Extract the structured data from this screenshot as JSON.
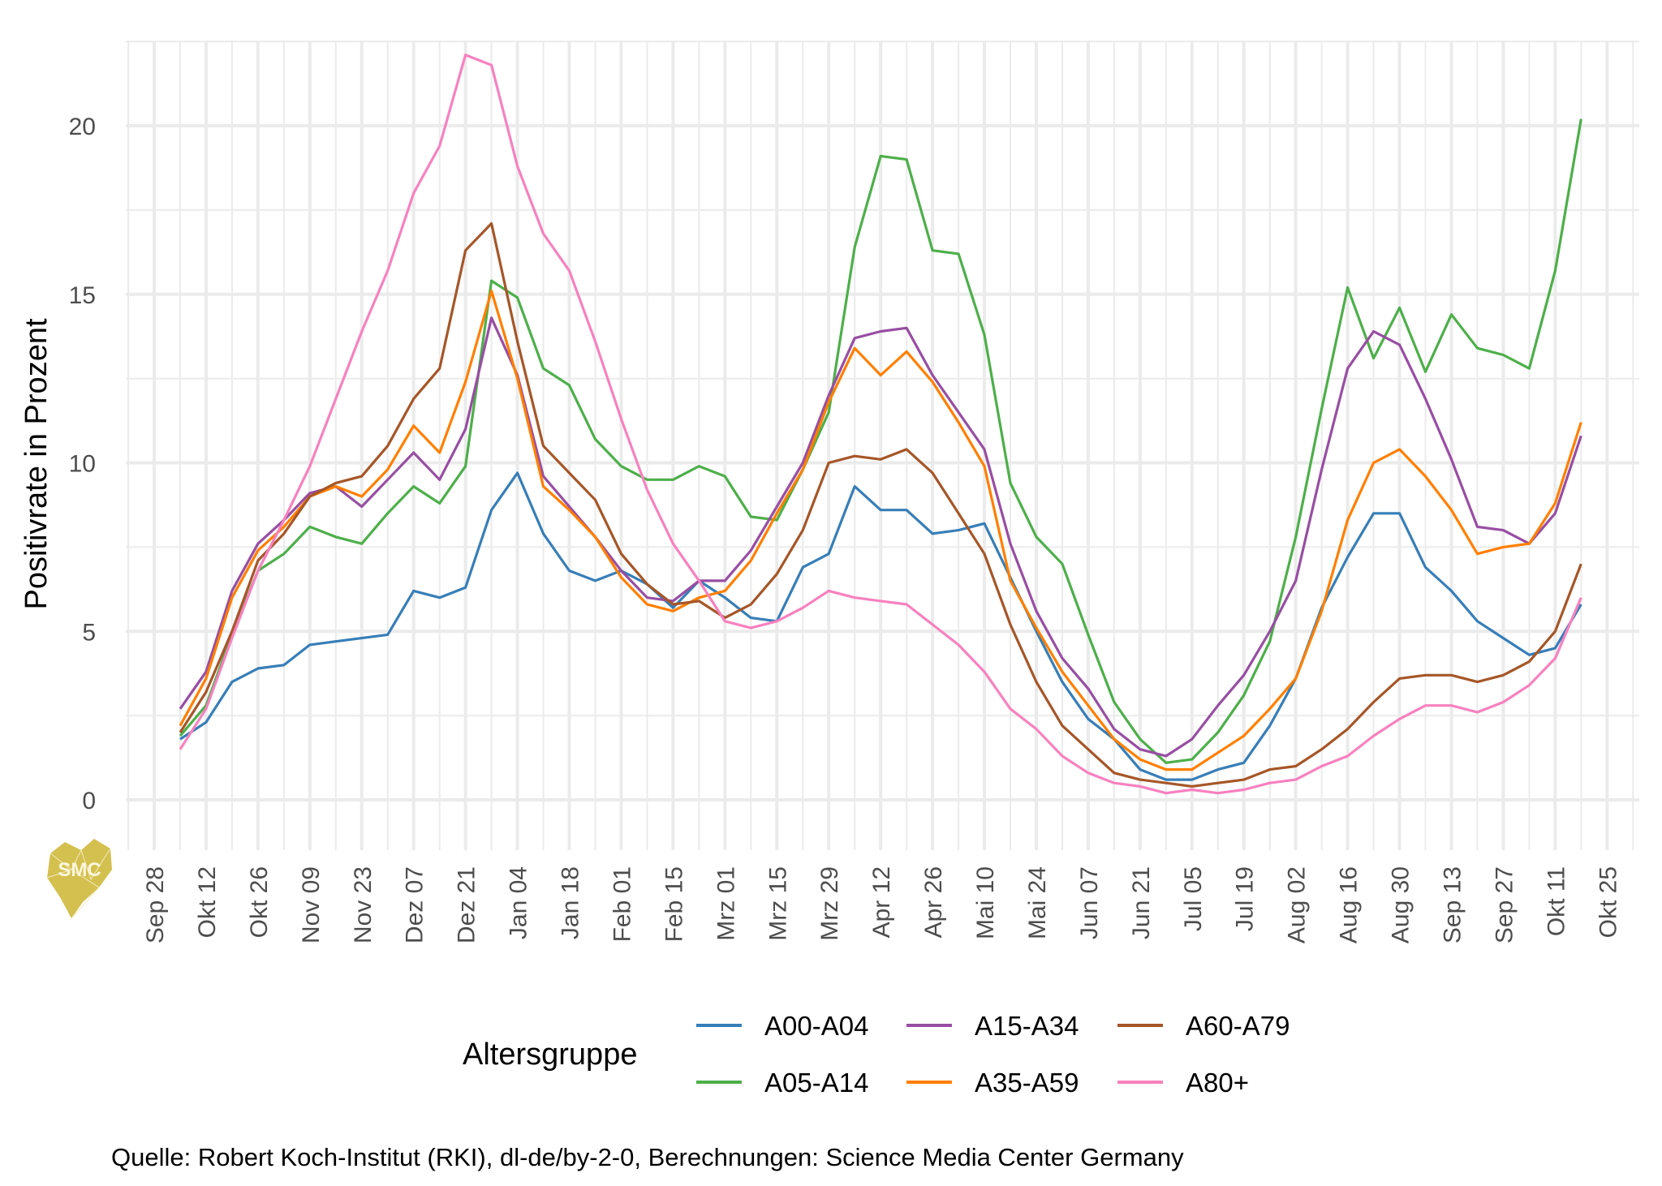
{
  "chart_data": {
    "type": "line",
    "title": "",
    "xlabel": "",
    "ylabel": "Positivrate in Prozent",
    "ylim": [
      -0.8,
      22.4
    ],
    "yticks": [
      0,
      5,
      10,
      15,
      20
    ],
    "grid": true,
    "legend_title": "Altersgruppe",
    "legend_position": "bottom",
    "caption": "Quelle: Robert Koch-Institut (RKI), dl-de/by-2-0, Berechnungen: Science Media Center Germany",
    "xtick_labels": [
      "Sep 28",
      "Okt 12",
      "Okt 26",
      "Nov 09",
      "Nov 23",
      "Dez 07",
      "Dez 21",
      "Jan 04",
      "Jan 18",
      "Feb 01",
      "Feb 15",
      "Mrz 01",
      "Mrz 15",
      "Mrz 29",
      "Apr 12",
      "Apr 26",
      "Mai 10",
      "Mai 24",
      "Jun 07",
      "Jun 21",
      "Jul 05",
      "Jul 19",
      "Aug 02",
      "Aug 16",
      "Aug 30",
      "Sep 13",
      "Sep 27",
      "Okt 11",
      "Okt 25"
    ],
    "x_weeks_note": "weekly points; first point one week after 'Sep 28', last point one week after 'Okt 11'",
    "x_first_week_offset": 1,
    "series": [
      {
        "name": "A00-A04",
        "color": "#377eb8",
        "values": [
          1.8,
          2.3,
          3.5,
          3.9,
          4.0,
          4.6,
          4.7,
          4.8,
          4.9,
          6.2,
          6.0,
          6.3,
          8.6,
          9.7,
          7.9,
          6.8,
          6.5,
          6.8,
          6.4,
          5.7,
          6.5,
          6.0,
          5.4,
          5.3,
          6.9,
          7.3,
          9.3,
          8.6,
          8.6,
          7.9,
          8.0,
          8.2,
          6.6,
          5.0,
          3.5,
          2.4,
          1.8,
          0.9,
          0.6,
          0.6,
          0.9,
          1.1,
          2.2,
          3.6,
          5.7,
          7.2,
          8.5,
          8.5,
          6.9,
          6.2,
          5.3,
          4.8,
          4.3,
          4.5,
          5.8
        ]
      },
      {
        "name": "A05-A14",
        "color": "#4daf4a",
        "values": [
          1.9,
          2.8,
          4.9,
          6.8,
          7.3,
          8.1,
          7.8,
          7.6,
          8.5,
          9.3,
          8.8,
          9.9,
          15.4,
          14.9,
          12.8,
          12.3,
          10.7,
          9.9,
          9.5,
          9.5,
          9.9,
          9.6,
          8.4,
          8.3,
          9.8,
          11.5,
          16.4,
          19.1,
          19.0,
          16.3,
          16.2,
          13.8,
          9.4,
          7.8,
          7.0,
          4.9,
          2.9,
          1.8,
          1.1,
          1.2,
          2.0,
          3.1,
          4.7,
          7.8,
          11.6,
          15.2,
          13.1,
          14.6,
          12.7,
          14.4,
          13.4,
          13.2,
          12.8,
          15.7,
          20.2
        ]
      },
      {
        "name": "A15-A34",
        "color": "#984ea3",
        "values": [
          2.7,
          3.8,
          6.2,
          7.6,
          8.3,
          9.1,
          9.3,
          8.7,
          9.5,
          10.3,
          9.5,
          11.0,
          14.3,
          12.6,
          9.6,
          8.7,
          7.8,
          6.8,
          6.0,
          5.9,
          6.5,
          6.5,
          7.4,
          8.7,
          10.0,
          12.0,
          13.7,
          13.9,
          14.0,
          12.6,
          11.5,
          10.4,
          7.6,
          5.6,
          4.2,
          3.3,
          2.1,
          1.5,
          1.3,
          1.8,
          2.8,
          3.7,
          5.0,
          6.5,
          9.8,
          12.8,
          13.9,
          13.5,
          11.9,
          10.1,
          8.1,
          8.0,
          7.6,
          8.5,
          10.8
        ]
      },
      {
        "name": "A35-A59",
        "color": "#ff7f00",
        "values": [
          2.2,
          3.6,
          6.0,
          7.4,
          8.1,
          9.0,
          9.3,
          9.0,
          9.8,
          11.1,
          10.3,
          12.4,
          15.1,
          12.5,
          9.3,
          8.6,
          7.8,
          6.6,
          5.8,
          5.6,
          6.0,
          6.2,
          7.1,
          8.5,
          9.8,
          11.8,
          13.4,
          12.6,
          13.3,
          12.4,
          11.2,
          9.9,
          6.5,
          5.1,
          3.8,
          2.8,
          1.8,
          1.2,
          0.9,
          0.9,
          1.4,
          1.9,
          2.7,
          3.6,
          5.6,
          8.3,
          10.0,
          10.4,
          9.6,
          8.6,
          7.3,
          7.5,
          7.6,
          8.8,
          11.2
        ]
      },
      {
        "name": "A60-A79",
        "color": "#a65628",
        "values": [
          2.0,
          3.2,
          5.0,
          7.1,
          7.9,
          9.0,
          9.4,
          9.6,
          10.5,
          11.9,
          12.8,
          16.3,
          17.1,
          13.6,
          10.5,
          9.7,
          8.9,
          7.3,
          6.4,
          5.8,
          5.9,
          5.4,
          5.8,
          6.7,
          8.0,
          10.0,
          10.2,
          10.1,
          10.4,
          9.7,
          8.5,
          7.3,
          5.2,
          3.5,
          2.2,
          1.5,
          0.8,
          0.6,
          0.5,
          0.4,
          0.5,
          0.6,
          0.9,
          1.0,
          1.5,
          2.1,
          2.9,
          3.6,
          3.7,
          3.7,
          3.5,
          3.7,
          4.1,
          5.0,
          7.0
        ]
      },
      {
        "name": "A80+",
        "color": "#f781bf",
        "values": [
          1.5,
          2.7,
          4.8,
          6.8,
          8.3,
          9.9,
          11.9,
          13.9,
          15.7,
          18.0,
          19.4,
          22.1,
          21.8,
          18.8,
          16.8,
          15.7,
          13.6,
          11.3,
          9.2,
          7.6,
          6.5,
          5.3,
          5.1,
          5.3,
          5.7,
          6.2,
          6.0,
          5.9,
          5.8,
          5.2,
          4.6,
          3.8,
          2.7,
          2.1,
          1.3,
          0.8,
          0.5,
          0.4,
          0.2,
          0.3,
          0.2,
          0.3,
          0.5,
          0.6,
          1.0,
          1.3,
          1.9,
          2.4,
          2.8,
          2.8,
          2.6,
          2.9,
          3.4,
          4.2,
          6.0
        ]
      }
    ]
  },
  "logo": {
    "text": "SMC",
    "color": "#d4c04f",
    "icon": "smc-logo-icon"
  },
  "colors": {
    "grid": "#ebebeb",
    "background": "#ffffff",
    "tick_text": "#4d4d4d"
  }
}
